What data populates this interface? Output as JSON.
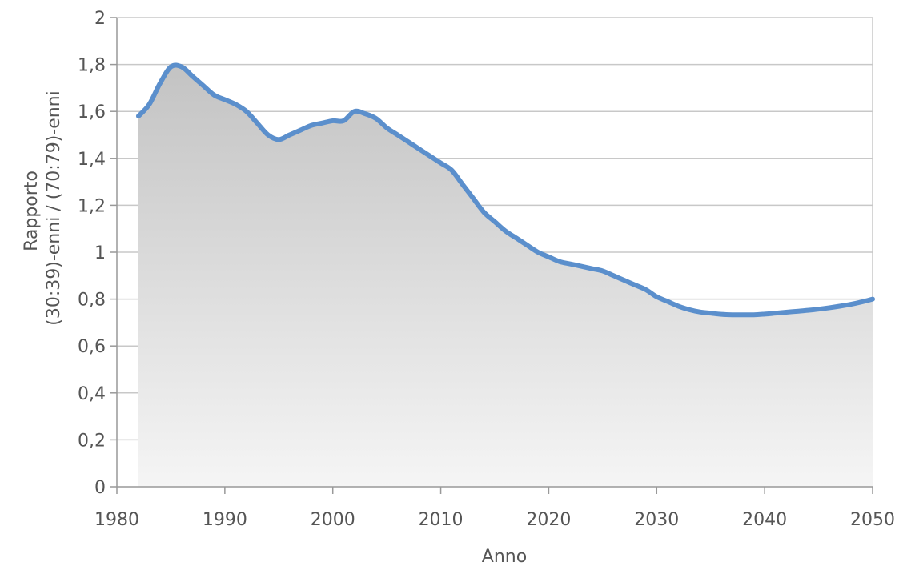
{
  "chart_data": {
    "type": "area",
    "title": "",
    "xlabel": "Anno",
    "ylabel_lines": [
      "Rapporto",
      "(30:39)-enni  / (70:79)-enni"
    ],
    "xlim": [
      1980,
      2050
    ],
    "ylim": [
      0,
      2
    ],
    "xticks": [
      1980,
      1990,
      2000,
      2010,
      2020,
      2030,
      2040,
      2050
    ],
    "yticks": [
      0,
      0.2,
      0.4,
      0.6,
      0.8,
      1,
      1.2,
      1.4,
      1.6,
      1.8,
      2
    ],
    "ytick_labels": [
      "0",
      "0,2",
      "0,4",
      "0,6",
      "0,8",
      "1",
      "1,2",
      "1,4",
      "1,6",
      "1,8",
      "2"
    ],
    "grid": true,
    "colors": {
      "line": "#5b8fcc",
      "fill_top": "#c3c3c3",
      "fill_bottom": "#f5f5f5",
      "grid": "#c8c8c8",
      "axis": "#999999"
    },
    "series": [
      {
        "x": [
          1982,
          1983,
          1984,
          1985,
          1986,
          1987,
          1988,
          1989,
          1990,
          1991,
          1992,
          1993,
          1994,
          1995,
          1996,
          1997,
          1998,
          1999,
          2000,
          2001,
          2002,
          2003,
          2004,
          2005,
          2006,
          2007,
          2008,
          2009,
          2010,
          2011,
          2012,
          2013,
          2014,
          2015,
          2016,
          2017,
          2018,
          2019,
          2020,
          2021,
          2022,
          2023,
          2024,
          2025,
          2026,
          2027,
          2028,
          2029,
          2030,
          2031,
          2032,
          2033,
          2034,
          2035,
          2036,
          2037,
          2038,
          2039,
          2040,
          2041,
          2042,
          2043,
          2044,
          2045,
          2046,
          2047,
          2048,
          2049,
          2050
        ],
        "y": [
          1.58,
          1.63,
          1.72,
          1.79,
          1.79,
          1.75,
          1.71,
          1.67,
          1.65,
          1.63,
          1.6,
          1.55,
          1.5,
          1.48,
          1.5,
          1.52,
          1.54,
          1.55,
          1.56,
          1.56,
          1.6,
          1.59,
          1.57,
          1.53,
          1.5,
          1.47,
          1.44,
          1.41,
          1.38,
          1.35,
          1.29,
          1.23,
          1.17,
          1.13,
          1.09,
          1.06,
          1.03,
          1.0,
          0.98,
          0.96,
          0.95,
          0.94,
          0.93,
          0.92,
          0.9,
          0.88,
          0.86,
          0.84,
          0.81,
          0.79,
          0.77,
          0.755,
          0.745,
          0.74,
          0.735,
          0.733,
          0.733,
          0.733,
          0.736,
          0.74,
          0.744,
          0.748,
          0.752,
          0.757,
          0.763,
          0.77,
          0.778,
          0.788,
          0.8
        ]
      }
    ]
  }
}
